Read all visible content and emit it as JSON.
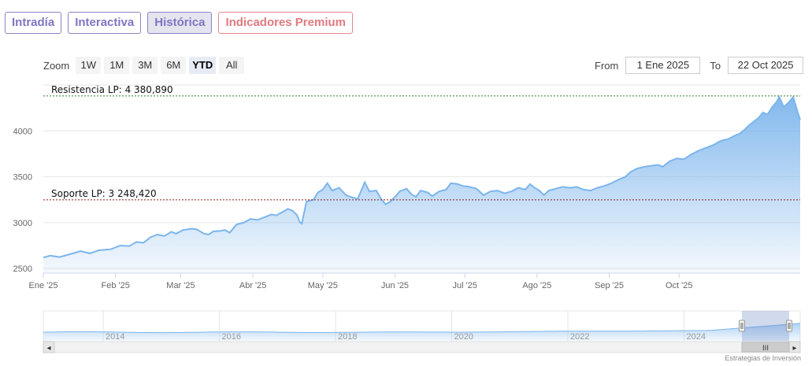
{
  "tabs": [
    {
      "label": "Intradía"
    },
    {
      "label": "Interactiva"
    },
    {
      "label": "Histórica"
    },
    {
      "label": "Indicadores Premium"
    }
  ],
  "zoom": {
    "label": "Zoom",
    "buttons": [
      "1W",
      "1M",
      "3M",
      "6M",
      "YTD",
      "All"
    ],
    "selected": "YTD"
  },
  "range": {
    "from_label": "From",
    "from_value": "1 Ene 2025",
    "to_label": "To",
    "to_value": "22 Oct 2025"
  },
  "credit": "Estrategias de Inversión",
  "chart_data": {
    "type": "area",
    "ylim": [
      2450,
      4500
    ],
    "y_ticks": [
      2500,
      3000,
      3500,
      4000
    ],
    "y_tick_labels": [
      "2500",
      "3000",
      "3500",
      "4000"
    ],
    "x_tick_labels": [
      "Ene '25",
      "Feb '25",
      "Mar '25",
      "Abr '25",
      "May '25",
      "Jun '25",
      "Jul '25",
      "Ago '25",
      "Sep '25",
      "Oct '25"
    ],
    "x_tick_days": [
      0,
      31,
      59,
      90,
      120,
      151,
      181,
      212,
      243,
      273
    ],
    "x_range_days": [
      0,
      325
    ],
    "colors": {
      "line": "#7cb5ec",
      "fill_top": "#7cb5ec",
      "fill_bottom": "#eef5fc",
      "resistance": "#2e7d32",
      "support": "#8b1a1a"
    },
    "reference_lines": [
      {
        "label": "Resistencia LP: 4 380,890",
        "value": 4380.89,
        "color": "#2e7d32"
      },
      {
        "label": "Soporte LP: 3 248,420",
        "value": 3248.42,
        "color": "#8b1a1a"
      }
    ],
    "series": [
      {
        "points": [
          [
            0,
            2620
          ],
          [
            3,
            2640
          ],
          [
            7,
            2625
          ],
          [
            12,
            2660
          ],
          [
            16,
            2690
          ],
          [
            20,
            2665
          ],
          [
            24,
            2700
          ],
          [
            29,
            2710
          ],
          [
            33,
            2750
          ],
          [
            37,
            2745
          ],
          [
            40,
            2790
          ],
          [
            43,
            2780
          ],
          [
            46,
            2840
          ],
          [
            49,
            2870
          ],
          [
            52,
            2855
          ],
          [
            55,
            2900
          ],
          [
            57,
            2880
          ],
          [
            60,
            2920
          ],
          [
            64,
            2935
          ],
          [
            66,
            2925
          ],
          [
            69,
            2880
          ],
          [
            71,
            2870
          ],
          [
            73,
            2905
          ],
          [
            76,
            2910
          ],
          [
            78,
            2920
          ],
          [
            80,
            2890
          ],
          [
            83,
            2980
          ],
          [
            86,
            3000
          ],
          [
            89,
            3040
          ],
          [
            92,
            3030
          ],
          [
            95,
            3060
          ],
          [
            98,
            3090
          ],
          [
            100,
            3080
          ],
          [
            103,
            3120
          ],
          [
            105,
            3150
          ],
          [
            107,
            3130
          ],
          [
            109,
            3080
          ],
          [
            110,
            3010
          ],
          [
            111,
            2990
          ],
          [
            113,
            3230
          ],
          [
            116,
            3250
          ],
          [
            118,
            3330
          ],
          [
            120,
            3360
          ],
          [
            122,
            3430
          ],
          [
            124,
            3350
          ],
          [
            127,
            3380
          ],
          [
            130,
            3300
          ],
          [
            132,
            3280
          ],
          [
            135,
            3260
          ],
          [
            138,
            3440
          ],
          [
            140,
            3340
          ],
          [
            143,
            3350
          ],
          [
            145,
            3260
          ],
          [
            147,
            3200
          ],
          [
            149,
            3230
          ],
          [
            151,
            3280
          ],
          [
            153,
            3340
          ],
          [
            156,
            3370
          ],
          [
            158,
            3310
          ],
          [
            160,
            3280
          ],
          [
            162,
            3350
          ],
          [
            165,
            3330
          ],
          [
            167,
            3290
          ],
          [
            170,
            3340
          ],
          [
            173,
            3360
          ],
          [
            175,
            3430
          ],
          [
            178,
            3420
          ],
          [
            180,
            3400
          ],
          [
            183,
            3390
          ],
          [
            186,
            3370
          ],
          [
            189,
            3300
          ],
          [
            192,
            3340
          ],
          [
            195,
            3350
          ],
          [
            198,
            3320
          ],
          [
            201,
            3340
          ],
          [
            204,
            3380
          ],
          [
            207,
            3360
          ],
          [
            209,
            3420
          ],
          [
            211,
            3380
          ],
          [
            213,
            3350
          ],
          [
            215,
            3300
          ],
          [
            217,
            3350
          ],
          [
            220,
            3370
          ],
          [
            223,
            3390
          ],
          [
            226,
            3380
          ],
          [
            229,
            3390
          ],
          [
            232,
            3360
          ],
          [
            235,
            3350
          ],
          [
            238,
            3380
          ],
          [
            241,
            3400
          ],
          [
            244,
            3430
          ],
          [
            247,
            3470
          ],
          [
            250,
            3500
          ],
          [
            252,
            3550
          ],
          [
            255,
            3590
          ],
          [
            258,
            3610
          ],
          [
            261,
            3620
          ],
          [
            264,
            3630
          ],
          [
            266,
            3610
          ],
          [
            269,
            3670
          ],
          [
            272,
            3700
          ],
          [
            275,
            3690
          ],
          [
            278,
            3740
          ],
          [
            281,
            3780
          ],
          [
            283,
            3800
          ],
          [
            285,
            3820
          ],
          [
            288,
            3850
          ],
          [
            290,
            3880
          ],
          [
            292,
            3900
          ],
          [
            294,
            3910
          ],
          [
            297,
            3950
          ],
          [
            299,
            3970
          ],
          [
            301,
            4010
          ],
          [
            303,
            4060
          ],
          [
            305,
            4100
          ],
          [
            307,
            4140
          ],
          [
            309,
            4200
          ],
          [
            311,
            4180
          ],
          [
            313,
            4260
          ],
          [
            315,
            4320
          ],
          [
            316,
            4370
          ],
          [
            318,
            4260
          ],
          [
            320,
            4310
          ],
          [
            322,
            4370
          ],
          [
            324,
            4200
          ],
          [
            325,
            4120
          ]
        ]
      }
    ]
  },
  "navigator": {
    "year_labels": [
      "2014",
      "2016",
      "2018",
      "2020",
      "2022",
      "2024"
    ],
    "scroll_grip": "III",
    "scroll_left_arrow": "◂",
    "scroll_right_arrow": "▸"
  }
}
